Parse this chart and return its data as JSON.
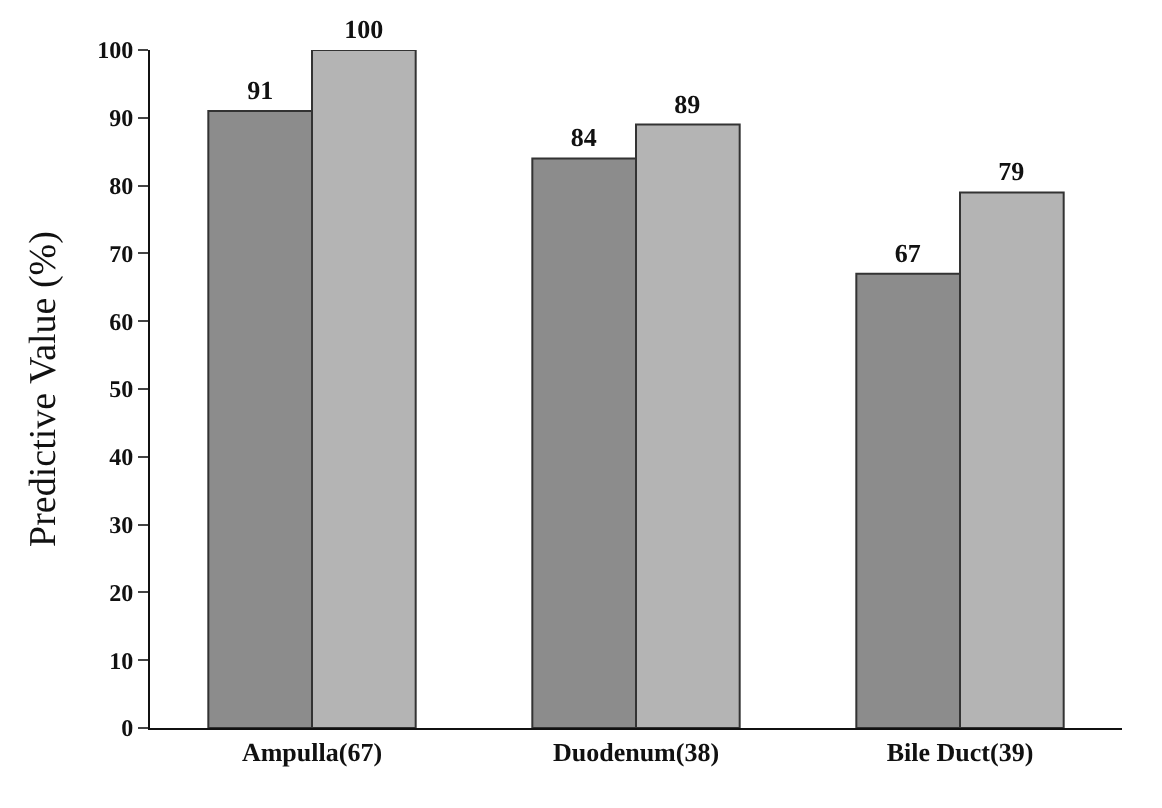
{
  "chart_data": {
    "type": "bar",
    "ylabel": "Predictive Value (%)",
    "categories": [
      "Ampulla(67)",
      "Duodenum(38)",
      "Bile Duct(39)"
    ],
    "series": [
      {
        "color": "#8c8c8c",
        "values": [
          91,
          84,
          67
        ]
      },
      {
        "color": "#b4b4b4",
        "values": [
          100,
          89,
          79
        ]
      }
    ],
    "ylim": [
      0,
      100
    ],
    "yticks": [
      0,
      10,
      20,
      30,
      40,
      50,
      60,
      70,
      80,
      90,
      100
    ],
    "data_labels": true,
    "legend": false
  }
}
